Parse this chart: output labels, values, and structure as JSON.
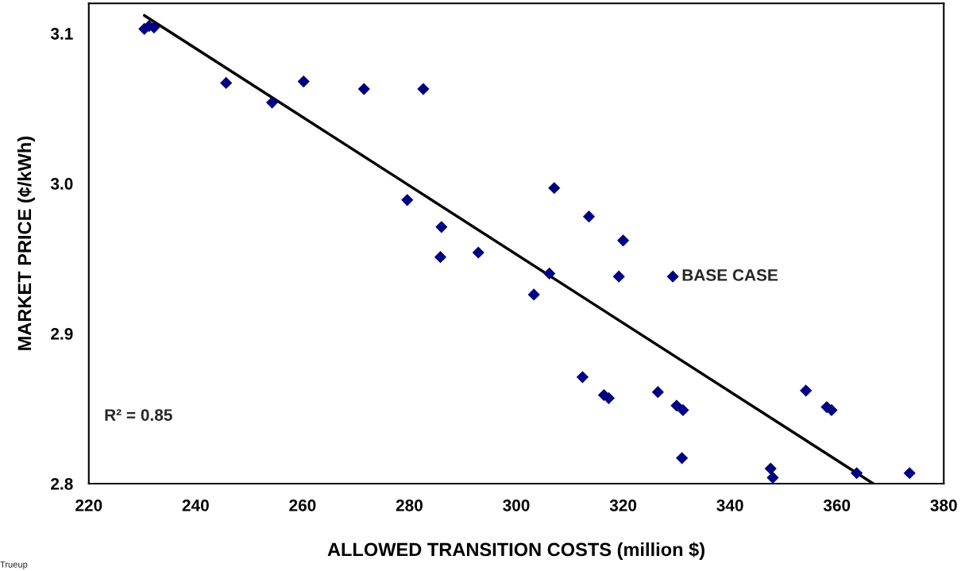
{
  "chart_data": {
    "type": "scatter",
    "xlabel": "ALLOWED TRANSITION COSTS (million $)",
    "ylabel": "MARKET PRICE (¢/kWh)",
    "xlim": [
      220,
      380
    ],
    "xticks": [
      220,
      240,
      260,
      280,
      300,
      320,
      340,
      360,
      380
    ],
    "ylim": [
      2.8,
      3.12
    ],
    "yticks": [
      2.8,
      2.9,
      {
        "value": 3.0,
        "label": "3.0"
      },
      3.1
    ],
    "grid": false,
    "legend": false,
    "series": [
      {
        "marker": "diamond",
        "color": "#000080",
        "x": [
          230.4,
          231.3,
          232.2,
          245.7,
          254.3,
          260.2,
          271.5,
          282.6,
          279.6,
          286.0,
          285.8,
          292.9,
          303.3,
          306.2,
          307.1,
          313.6,
          320.0,
          319.2,
          329.3,
          312.4,
          316.4,
          317.3,
          326.5,
          330.0,
          331.2,
          331.0,
          347.6,
          348.0,
          354.2,
          358.1,
          359.0,
          363.7,
          373.6
        ],
        "values": [
          3.103,
          3.105,
          3.104,
          3.067,
          3.054,
          3.068,
          3.063,
          3.063,
          2.989,
          2.971,
          2.951,
          2.954,
          2.926,
          2.94,
          2.997,
          2.978,
          2.962,
          2.938,
          2.938,
          2.871,
          2.859,
          2.857,
          2.861,
          2.852,
          2.849,
          2.817,
          2.81,
          2.804,
          2.862,
          2.851,
          2.849,
          2.807,
          2.807
        ]
      },
      {
        "type": "line",
        "marker": "none",
        "color": "#000000",
        "x": [
          230.4,
          366.8
        ],
        "values": [
          3.112,
          2.8
        ]
      }
    ],
    "annotations": [
      {
        "text": "BASE CASE",
        "x": 329.3,
        "y": 2.938
      },
      "R² = 0.85",
      "Trueup"
    ]
  }
}
